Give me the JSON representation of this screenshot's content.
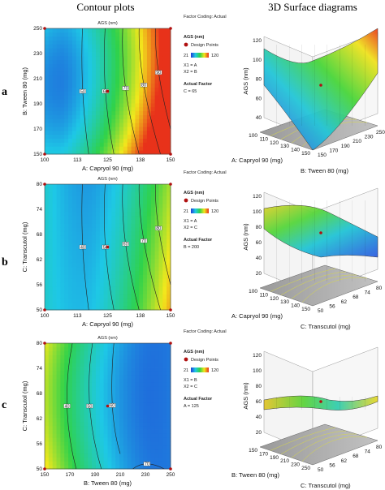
{
  "headers": {
    "contour": "Contour plots",
    "surface": "3D Surface diagrams"
  },
  "legend_colors": {
    "low": "#1f3bd6",
    "mid": "#2fd24a",
    "high": "#e8321a"
  },
  "panels": [
    {
      "row_label": "a",
      "title": "AGS (nm)",
      "factor_coding": "Factor Coding: Actual",
      "legend": {
        "title": "AGS (nm)",
        "design_points": "Design Points",
        "min": "21",
        "max": "120",
        "x1": "X1 = A",
        "x2": "X2 = B",
        "actual_factor": "Actual Factor",
        "actual_value": "C = 65"
      },
      "contour_labels": [
        "50",
        "60",
        "70",
        "80",
        "90",
        "100"
      ],
      "surface": {
        "z_label": "AGS (nm)",
        "z_ticks": [
          "40",
          "60",
          "80",
          "100",
          "120"
        ],
        "x_label": "A: Capryol 90 (mg)",
        "x_ticks": [
          "100",
          "110",
          "120",
          "130",
          "140",
          "150"
        ],
        "y_label": "B: Tween 80 (mg)",
        "y_ticks": [
          "150",
          "170",
          "190",
          "210",
          "230",
          "250"
        ]
      }
    },
    {
      "row_label": "b",
      "title": "AGS (nm)",
      "factor_coding": "Factor Coding: Actual",
      "legend": {
        "title": "AGS (nm)",
        "design_points": "Design Points",
        "min": "21",
        "max": "120",
        "x1": "X1 = A",
        "x2": "X2 = C",
        "actual_factor": "Actual Factor",
        "actual_value": "B = 200"
      },
      "contour_labels": [
        "40",
        "50",
        "60",
        "70",
        "80"
      ],
      "surface": {
        "z_label": "AGS (nm)",
        "z_ticks": [
          "20",
          "40",
          "60",
          "80",
          "100",
          "120"
        ],
        "x_label": "A: Capryol 90 (mg)",
        "x_ticks": [
          "100",
          "110",
          "120",
          "130",
          "140",
          "150"
        ],
        "y_label": "C: Transcutol (mg)",
        "y_ticks": [
          "50",
          "56",
          "62",
          "68",
          "74",
          "80"
        ]
      }
    },
    {
      "row_label": "c",
      "title": "AGS (nm)",
      "factor_coding": "Factor Coding: Actual",
      "legend": {
        "title": "AGS (nm)",
        "design_points": "Design Points",
        "min": "21",
        "max": "120",
        "x1": "X1 = B",
        "x2": "X2 = C",
        "actual_factor": "Actual Factor",
        "actual_value": "A = 125"
      },
      "contour_labels": [
        "40",
        "50",
        "60",
        "70"
      ],
      "surface": {
        "z_label": "AGS (nm)",
        "z_ticks": [
          "20",
          "40",
          "60",
          "80",
          "100",
          "120"
        ],
        "x_label": "B: Tween 80 (mg)",
        "x_ticks": [
          "150",
          "170",
          "190",
          "210",
          "230",
          "250"
        ],
        "y_label": "C: Transcutol (mg)",
        "y_ticks": [
          "50",
          "56",
          "62",
          "68",
          "74",
          "80"
        ]
      }
    }
  ],
  "chart_data": [
    {
      "type": "heatmap",
      "title": "AGS (nm)",
      "xlabel": "A: Capryol 90 (mg)",
      "ylabel": "B: Tween 80 (mg)",
      "xlim": [
        100,
        150
      ],
      "ylim": [
        150,
        250
      ],
      "x_ticks": [
        100,
        113,
        125,
        138,
        150
      ],
      "y_ticks": [
        150,
        170,
        190,
        210,
        230,
        250
      ],
      "x_tick_labels": [
        "100",
        "113",
        "125",
        "138",
        "150"
      ],
      "y_tick_labels": [
        "150",
        "170",
        "190",
        "210",
        "230",
        "250"
      ],
      "color_range": [
        21,
        120
      ],
      "contours": [
        50,
        60,
        70,
        80,
        90,
        100
      ],
      "design_points": [
        [
          100,
          150
        ],
        [
          150,
          150
        ],
        [
          100,
          250
        ],
        [
          150,
          250
        ],
        [
          125,
          200
        ],
        [
          125,
          200
        ]
      ]
    },
    {
      "type": "heatmap",
      "title": "AGS (nm)",
      "xlabel": "A: Capryol 90 (mg)",
      "ylabel": "C: Transcutol (mg)",
      "xlim": [
        100,
        150
      ],
      "ylim": [
        50,
        80
      ],
      "x_ticks": [
        100,
        113,
        125,
        138,
        150
      ],
      "y_ticks": [
        50,
        56,
        62,
        68,
        74,
        80
      ],
      "x_tick_labels": [
        "100",
        "113",
        "125",
        "138",
        "150"
      ],
      "y_tick_labels": [
        "50",
        "56",
        "62",
        "68",
        "74",
        "80"
      ],
      "color_range": [
        21,
        120
      ],
      "contours": [
        40,
        50,
        60,
        70,
        80
      ],
      "design_points": [
        [
          100,
          50
        ],
        [
          150,
          50
        ],
        [
          100,
          80
        ],
        [
          150,
          80
        ],
        [
          125,
          65
        ]
      ]
    },
    {
      "type": "heatmap",
      "title": "AGS (nm)",
      "xlabel": "B: Tween 80 (mg)",
      "ylabel": "C: Transcutol (mg)",
      "xlim": [
        150,
        250
      ],
      "ylim": [
        50,
        80
      ],
      "x_ticks": [
        150,
        170,
        190,
        210,
        230,
        250
      ],
      "y_ticks": [
        50,
        56,
        62,
        68,
        74,
        80
      ],
      "x_tick_labels": [
        "150",
        "170",
        "190",
        "210",
        "230",
        "250"
      ],
      "y_tick_labels": [
        "50",
        "56",
        "62",
        "68",
        "74",
        "80"
      ],
      "color_range": [
        21,
        120
      ],
      "contours": [
        40,
        50,
        60,
        70
      ],
      "design_points": [
        [
          150,
          50
        ],
        [
          250,
          50
        ],
        [
          150,
          80
        ],
        [
          250,
          80
        ],
        [
          200,
          65
        ]
      ]
    }
  ]
}
